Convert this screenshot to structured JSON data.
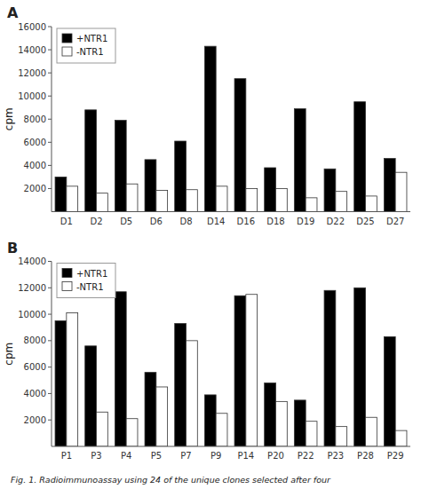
{
  "chart_data": [
    {
      "type": "bar",
      "title": "A",
      "y_label": "cpm",
      "categories": [
        "D1",
        "D2",
        "D5",
        "D6",
        "D8",
        "D14",
        "D16",
        "D18",
        "D19",
        "D22",
        "D25",
        "D27"
      ],
      "series": [
        {
          "name": "+NTR1",
          "color": "#000000",
          "values": [
            3000,
            8800,
            7900,
            4500,
            6100,
            14300,
            11500,
            3800,
            8900,
            3700,
            9500,
            4600
          ]
        },
        {
          "name": "-NTR1",
          "color": "#ffffff",
          "values": [
            2200,
            1600,
            2400,
            1850,
            1900,
            2200,
            2000,
            2000,
            1200,
            1750,
            1350,
            3400
          ]
        }
      ],
      "ylim": [
        0,
        16000
      ],
      "yticks": [
        2000,
        4000,
        6000,
        8000,
        10000,
        12000,
        14000,
        16000
      ],
      "grid": false,
      "legend": "upper left"
    },
    {
      "type": "bar",
      "title": "B",
      "y_label": "cpm",
      "categories": [
        "P1",
        "P3",
        "P4",
        "P5",
        "P7",
        "P9",
        "P14",
        "P20",
        "P22",
        "P23",
        "P28",
        "P29"
      ],
      "series": [
        {
          "name": "+NTR1",
          "color": "#000000",
          "values": [
            9500,
            7600,
            11700,
            5600,
            9300,
            3900,
            11400,
            4800,
            3500,
            11800,
            12000,
            8300
          ]
        },
        {
          "name": "-NTR1",
          "color": "#ffffff",
          "values": [
            10100,
            2600,
            2100,
            4500,
            8000,
            2500,
            11500,
            3400,
            1900,
            1500,
            2200,
            1200
          ]
        }
      ],
      "ylim": [
        0,
        14000
      ],
      "yticks": [
        2000,
        4000,
        6000,
        8000,
        10000,
        12000,
        14000
      ],
      "grid": false,
      "legend": "upper left"
    }
  ],
  "caption": "Fig. 1. Radioimmunoassay using 24 of the unique clones selected after four"
}
